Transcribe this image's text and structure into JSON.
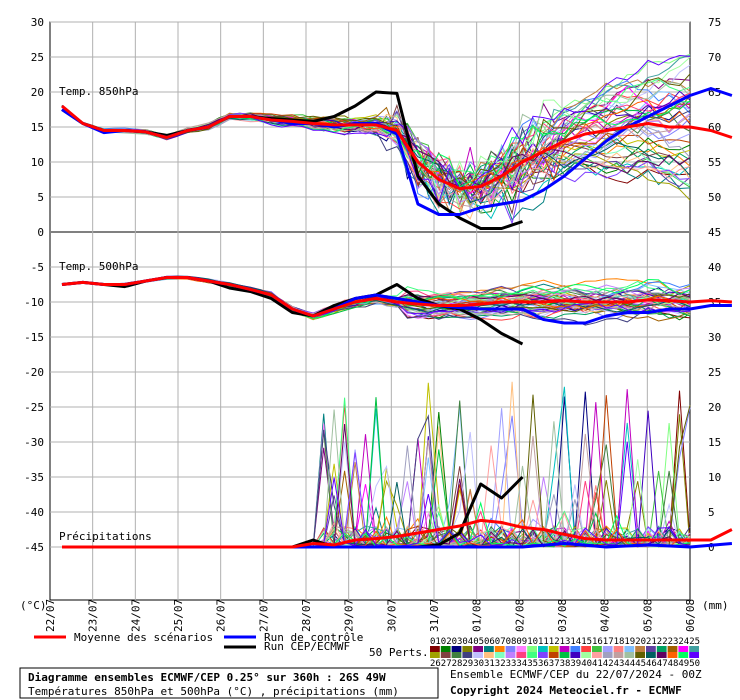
{
  "chart_data": {
    "type": "line",
    "title": "Diagramme ensembles ECMWF/CEP 0.25° sur 360h : 26S 49W",
    "subtitle": "Températures 850hPa et 500hPa (°C) , précipitations (mm)",
    "run_info": "Ensemble ECMWF/CEP du 22/07/2024 - 00Z",
    "copyright": "Copyright 2024 Meteociel.fr - ECMWF",
    "left_unit": "(°C)",
    "right_unit": "(mm)",
    "x_labels": [
      "22/07",
      "23/07",
      "24/07",
      "25/07",
      "26/07",
      "27/07",
      "28/07",
      "29/07",
      "30/07",
      "31/07",
      "01/08",
      "02/08",
      "03/08",
      "04/08",
      "05/08",
      "06/08"
    ],
    "left_axis": {
      "ticks": [
        30,
        25,
        20,
        15,
        10,
        5,
        0,
        -5,
        -10,
        -15,
        -20,
        -25,
        -30,
        -35,
        -40,
        -45
      ],
      "range": [
        -45,
        30
      ]
    },
    "right_axis": {
      "ticks_upper": [
        75,
        70,
        65,
        60,
        55,
        50,
        45
      ],
      "ticks_lower": [
        40,
        35,
        30,
        25,
        20,
        15,
        10,
        5,
        0
      ]
    },
    "panels": {
      "t850": "Temp. 850hPa",
      "t500": "Temp. 500hPa",
      "precip": "Précipitations"
    },
    "legend": {
      "mean": "Moyenne des scénarios",
      "control": "Run de contrôle",
      "oper": "Run CEP/ECMWF",
      "perts": "50 Perts.",
      "pert_numbers_top": [
        "01",
        "02",
        "03",
        "04",
        "05",
        "06",
        "07",
        "08",
        "09",
        "10",
        "11",
        "12",
        "13",
        "14",
        "15",
        "16",
        "17",
        "18",
        "19",
        "20",
        "21",
        "22",
        "23",
        "24",
        "25"
      ],
      "pert_numbers_bottom": [
        "26",
        "27",
        "28",
        "29",
        "30",
        "31",
        "32",
        "33",
        "34",
        "35",
        "36",
        "37",
        "38",
        "39",
        "40",
        "41",
        "42",
        "43",
        "44",
        "45",
        "46",
        "47",
        "48",
        "49",
        "50"
      ]
    },
    "colors": {
      "mean": "#ff0000",
      "control": "#0000ff",
      "oper": "#000000",
      "grid": "#a0a0a0",
      "plot_bg": "#ffffff",
      "pert_palette": [
        "#800000",
        "#008000",
        "#000080",
        "#808000",
        "#800080",
        "#008080",
        "#ff8000",
        "#8080ff",
        "#ff80ff",
        "#80ff80",
        "#00c0c0",
        "#c0c000",
        "#c000c0",
        "#4080ff",
        "#ff4040",
        "#40c040",
        "#a0a0ff",
        "#ff8080",
        "#80c0ff",
        "#c08040",
        "#6040a0",
        "#00a060",
        "#a06000",
        "#ff00ff",
        "#40a0a0",
        "#a0a000",
        "#804040",
        "#408040",
        "#404080",
        "#c0c0ff",
        "#ffc080",
        "#80ffc0",
        "#c080ff",
        "#ff4080",
        "#40ff80",
        "#8040ff",
        "#c04000",
        "#00c040",
        "#4000c0",
        "#a0ffa0",
        "#ffa0a0",
        "#a0a0c0",
        "#c0a0a0",
        "#a0c0a0",
        "#606000",
        "#006060",
        "#600060",
        "#ff6000",
        "#00ff60",
        "#6000ff"
      ]
    },
    "series": [
      {
        "name": "Moyenne des scénarios",
        "panel": "t850",
        "x": [
          0,
          0.5,
          1,
          1.5,
          2,
          2.5,
          3,
          3.5,
          4,
          4.5,
          5,
          5.5,
          6,
          6.5,
          7,
          7.5,
          8,
          8.5,
          9,
          9.5,
          10,
          10.5,
          11,
          11.5,
          12,
          12.5,
          13,
          13.5,
          14,
          14.5,
          15,
          15.5,
          16
        ],
        "y": [
          18,
          15.5,
          14.5,
          14.5,
          14.3,
          13.5,
          14.5,
          15,
          16.5,
          16.5,
          16,
          15.8,
          15.5,
          15.3,
          15.3,
          15.3,
          14.5,
          10,
          7.5,
          6.2,
          6.5,
          8,
          10,
          11.5,
          13,
          14,
          14.5,
          15,
          15.5,
          15,
          15,
          14.5,
          13.5
        ]
      },
      {
        "name": "Run de contrôle",
        "panel": "t850",
        "x": [
          0,
          0.5,
          1,
          1.5,
          2,
          2.5,
          3,
          3.5,
          4,
          4.5,
          5,
          5.5,
          6,
          6.5,
          7,
          7.5,
          8,
          8.5,
          9,
          9.5,
          10,
          10.5,
          11,
          11.5,
          12,
          12.5,
          13,
          13.5,
          14,
          14.5,
          15,
          15.5,
          16
        ],
        "y": [
          17.5,
          15.5,
          14.2,
          14.5,
          14.3,
          13.5,
          14.5,
          15,
          16.5,
          16.5,
          16,
          15.5,
          15.5,
          15,
          15.5,
          15.5,
          14,
          4,
          2.5,
          2.5,
          3.5,
          4,
          4.5,
          6,
          8,
          10.5,
          13,
          15,
          16.5,
          18,
          19.5,
          20.5,
          19.5
        ]
      },
      {
        "name": "Run CEP/ECMWF",
        "panel": "t850",
        "x": [
          0,
          0.5,
          1,
          1.5,
          2,
          2.5,
          3,
          3.5,
          4,
          4.5,
          5,
          5.5,
          6,
          6.5,
          7,
          7.5,
          8,
          8.5,
          9,
          9.5,
          10,
          10.5,
          11
        ],
        "y": [
          17.5,
          15.5,
          14.5,
          14.5,
          14.3,
          13.8,
          14.5,
          15,
          16.5,
          16.5,
          16.2,
          16,
          15.8,
          16.5,
          18,
          20,
          19.8,
          8,
          4,
          2,
          0.5,
          0.5,
          1.5
        ]
      },
      {
        "name": "Moyenne des scénarios",
        "panel": "t500",
        "x": [
          0,
          0.5,
          1,
          1.5,
          2,
          2.5,
          3,
          3.5,
          4,
          4.5,
          5,
          5.5,
          6,
          6.5,
          7,
          7.5,
          8,
          8.5,
          9,
          9.5,
          10,
          10.5,
          11,
          11.5,
          12,
          12.5,
          13,
          13.5,
          14,
          14.5,
          15,
          15.5,
          16
        ],
        "y": [
          -7.5,
          -7.2,
          -7.5,
          -7.5,
          -7,
          -6.5,
          -6.5,
          -7,
          -7.5,
          -8.2,
          -9,
          -11,
          -12,
          -11,
          -10,
          -9.5,
          -10,
          -10.3,
          -10.5,
          -10.5,
          -10.3,
          -10,
          -10,
          -10,
          -9.8,
          -10,
          -10,
          -10,
          -9.7,
          -9.8,
          -10,
          -9.8,
          -10
        ]
      },
      {
        "name": "Run de contrôle",
        "panel": "t500",
        "x": [
          0,
          0.5,
          1,
          1.5,
          2,
          2.5,
          3,
          3.5,
          4,
          4.5,
          5,
          5.5,
          6,
          6.5,
          7,
          7.5,
          8,
          8.5,
          9,
          9.5,
          10,
          10.5,
          11,
          11.5,
          12,
          12.5,
          13,
          13.5,
          14,
          14.5,
          15,
          15.5,
          16
        ],
        "y": [
          -7.5,
          -7.2,
          -7.5,
          -7.5,
          -7,
          -6.5,
          -6.5,
          -7,
          -7.5,
          -8.2,
          -9,
          -11,
          -12,
          -11,
          -9.5,
          -9,
          -9.5,
          -10,
          -10.5,
          -10.8,
          -11,
          -11,
          -11,
          -12.5,
          -13,
          -13,
          -12,
          -11.5,
          -11.5,
          -11,
          -11,
          -10.5,
          -10.5
        ]
      },
      {
        "name": "Run CEP/ECMWF",
        "panel": "t500",
        "x": [
          0,
          0.5,
          1,
          1.5,
          2,
          2.5,
          3,
          3.5,
          4,
          4.5,
          5,
          5.5,
          6,
          6.5,
          7,
          7.5,
          8,
          8.5,
          9,
          9.5,
          10,
          10.5,
          11
        ],
        "y": [
          -7.5,
          -7.2,
          -7.5,
          -7.8,
          -7,
          -6.5,
          -6.5,
          -7,
          -8,
          -8.5,
          -9.5,
          -11.5,
          -12,
          -10.5,
          -9.5,
          -9,
          -7.5,
          -9.5,
          -10.5,
          -11,
          -12.5,
          -14.5,
          -16
        ]
      },
      {
        "name": "Moyenne des scénarios",
        "panel": "precip",
        "x": [
          0,
          0.5,
          1,
          1.5,
          2,
          2.5,
          3,
          3.5,
          4,
          4.5,
          5,
          5.5,
          6,
          6.5,
          7,
          7.5,
          8,
          8.5,
          9,
          9.5,
          10,
          10.5,
          11,
          11.5,
          12,
          12.5,
          13,
          13.5,
          14,
          14.5,
          15,
          15.5,
          16
        ],
        "y": [
          0,
          0,
          0,
          0,
          0,
          0,
          0,
          0,
          0,
          0,
          0,
          0,
          0.5,
          0.3,
          1,
          1.2,
          1.5,
          2,
          2.5,
          3,
          3.8,
          3.5,
          2.8,
          2.5,
          1.8,
          1.2,
          1,
          1,
          1,
          1,
          1,
          1,
          2.5
        ]
      },
      {
        "name": "Run de contrôle",
        "panel": "precip",
        "x": [
          0,
          1,
          2,
          3,
          4,
          5,
          6,
          7,
          8,
          9,
          10,
          11,
          12,
          13,
          14,
          15,
          16
        ],
        "y": [
          0,
          0,
          0,
          0,
          0,
          0,
          0,
          0,
          0,
          0,
          0,
          0,
          0.5,
          0,
          0.3,
          0,
          0.5
        ]
      },
      {
        "name": "Run CEP/ECMWF",
        "panel": "precip",
        "x": [
          0,
          0.5,
          1,
          1.5,
          2,
          2.5,
          3,
          3.5,
          4,
          4.5,
          5,
          5.5,
          6,
          6.5,
          7,
          7.5,
          8,
          8.5,
          9,
          9.5,
          10,
          10.5,
          11
        ],
        "y": [
          0,
          0,
          0,
          0,
          0,
          0,
          0,
          0,
          0,
          0,
          0,
          0,
          1,
          0,
          0,
          0,
          0,
          0,
          0.3,
          2,
          9,
          7,
          10
        ]
      }
    ]
  }
}
